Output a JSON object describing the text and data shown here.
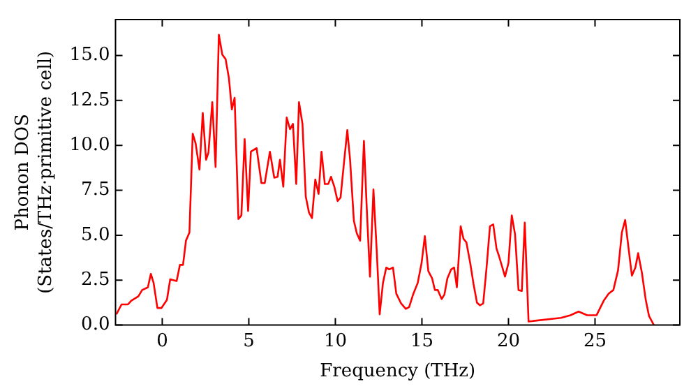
{
  "chart_data": {
    "type": "line",
    "xlabel": "Frequency (THz)",
    "ylabel": "Phonon DOS\n(States/THz·primitive cell)",
    "xlim": [
      -2.7,
      29.9
    ],
    "ylim": [
      0,
      17
    ],
    "xticks": [
      0,
      5,
      10,
      15,
      20,
      25
    ],
    "yticks": [
      {
        "value": 0,
        "label": "0.0"
      },
      {
        "value": 2.5,
        "label": "2.5"
      },
      {
        "value": 5,
        "label": "5.0"
      },
      {
        "value": 7.5,
        "label": "7.5"
      },
      {
        "value": 10,
        "label": "10.0"
      },
      {
        "value": 12.5,
        "label": "12.5"
      },
      {
        "value": 15,
        "label": "15.0"
      }
    ],
    "grid": false,
    "legend": false,
    "marker": "none",
    "line_style": "solid",
    "series": [
      {
        "color": "#ff0000",
        "x": [
          -2.65,
          -2.35,
          -1.98,
          -1.8,
          -1.38,
          -1.16,
          -0.83,
          -0.66,
          -0.5,
          -0.28,
          -0.05,
          0.27,
          0.46,
          0.83,
          1.02,
          1.2,
          1.37,
          1.57,
          1.76,
          1.93,
          2.15,
          2.34,
          2.53,
          2.67,
          2.89,
          3.08,
          3.27,
          3.47,
          3.66,
          3.85,
          4.02,
          4.18,
          4.4,
          4.57,
          4.76,
          4.96,
          5.12,
          5.45,
          5.73,
          5.92,
          6.22,
          6.47,
          6.66,
          6.8,
          6.99,
          7.19,
          7.38,
          7.55,
          7.74,
          7.9,
          8.1,
          8.29,
          8.48,
          8.65,
          8.84,
          9.03,
          9.2,
          9.39,
          9.59,
          9.75,
          9.94,
          10.13,
          10.3,
          10.5,
          10.69,
          10.85,
          11.07,
          11.24,
          11.43,
          11.65,
          11.82,
          12.0,
          12.2,
          12.4,
          12.56,
          12.75,
          12.94,
          13.11,
          13.33,
          13.52,
          13.8,
          14.07,
          14.26,
          14.49,
          14.76,
          14.98,
          15.17,
          15.37,
          15.59,
          15.75,
          15.92,
          16.14,
          16.3,
          16.47,
          16.69,
          16.86,
          17.02,
          17.24,
          17.4,
          17.57,
          17.79,
          17.98,
          18.18,
          18.35,
          18.54,
          18.73,
          18.93,
          19.12,
          19.31,
          19.45,
          19.8,
          20.0,
          20.19,
          20.38,
          20.58,
          20.77,
          20.94,
          21.16,
          23.03,
          23.58,
          24.05,
          24.55,
          25.09,
          25.5,
          25.79,
          26.06,
          26.33,
          26.55,
          26.74,
          26.94,
          27.13,
          27.33,
          27.49,
          27.71,
          27.93,
          28.12,
          28.4
        ],
        "values": [
          0.6,
          1.15,
          1.15,
          1.35,
          1.6,
          1.95,
          2.1,
          2.85,
          2.35,
          0.95,
          0.95,
          1.4,
          2.55,
          2.45,
          3.35,
          3.35,
          4.7,
          5.15,
          10.65,
          10.1,
          8.65,
          11.8,
          9.2,
          9.6,
          12.4,
          8.8,
          16.15,
          15.05,
          14.8,
          13.75,
          12.0,
          12.65,
          5.9,
          6.1,
          10.35,
          6.35,
          9.65,
          9.85,
          7.9,
          7.9,
          9.65,
          8.2,
          8.25,
          9.2,
          7.7,
          11.55,
          10.9,
          11.2,
          7.85,
          12.4,
          11.2,
          7.15,
          6.25,
          5.95,
          8.1,
          7.3,
          9.65,
          7.85,
          7.85,
          8.25,
          7.7,
          6.9,
          7.1,
          9.05,
          10.85,
          9.2,
          5.8,
          5.1,
          4.7,
          10.25,
          6.35,
          2.7,
          7.55,
          3.95,
          0.6,
          2.35,
          3.2,
          3.1,
          3.2,
          1.75,
          1.2,
          0.9,
          1.0,
          1.7,
          2.35,
          3.45,
          4.95,
          3.0,
          2.6,
          1.95,
          1.95,
          1.45,
          1.7,
          2.6,
          3.1,
          3.2,
          2.1,
          5.5,
          4.8,
          4.6,
          3.45,
          2.3,
          1.25,
          1.1,
          1.2,
          3.15,
          5.5,
          5.6,
          4.25,
          3.85,
          2.7,
          3.45,
          6.1,
          5.05,
          1.95,
          1.9,
          5.7,
          0.2,
          0.4,
          0.55,
          0.75,
          0.55,
          0.55,
          1.35,
          1.75,
          1.95,
          3.05,
          5.15,
          5.85,
          4.25,
          2.75,
          3.2,
          4.0,
          2.9,
          1.4,
          0.5,
          0
        ]
      }
    ]
  }
}
